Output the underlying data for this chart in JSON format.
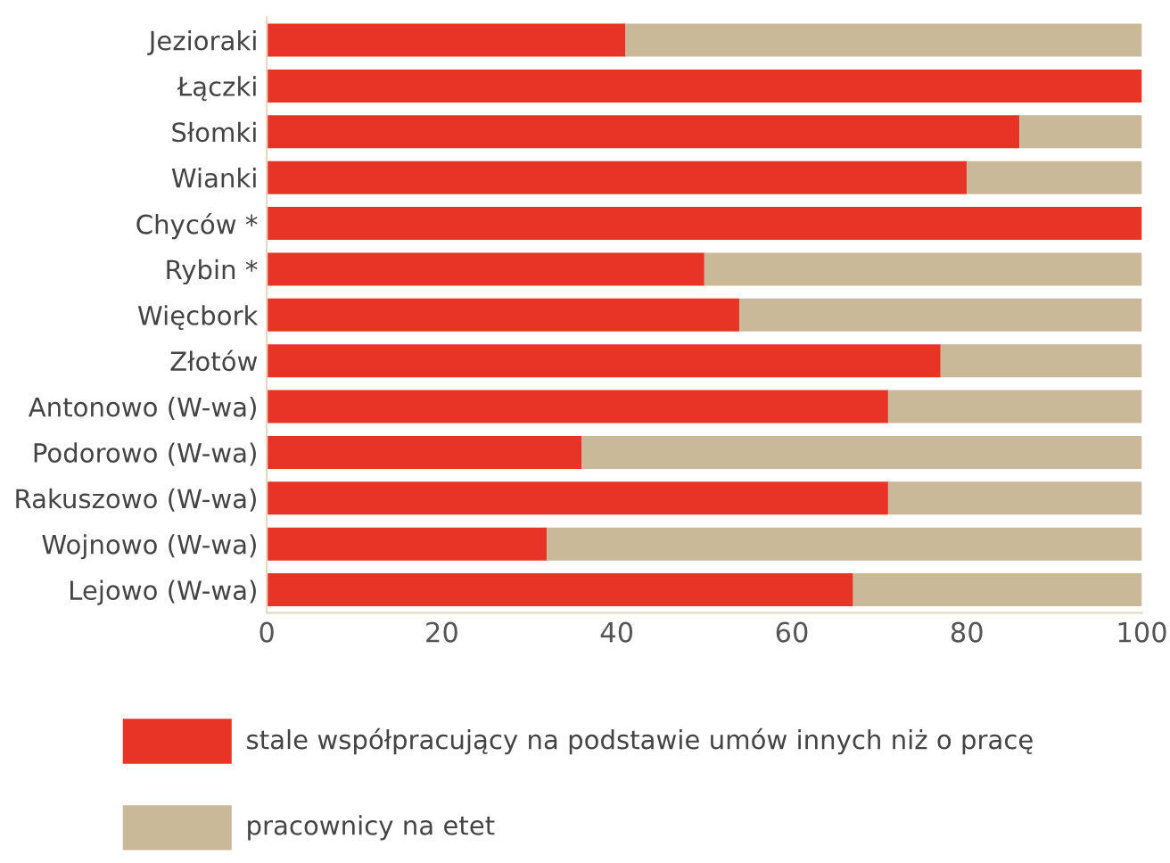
{
  "chart_data": {
    "type": "bar",
    "orientation": "horizontal",
    "stacked": true,
    "categories": [
      "Jezioraki",
      "Łączki",
      "Słomki",
      "Wianki",
      "Chyców *",
      "Rybin *",
      "Więcbork",
      "Złotów",
      "Antonowo (W-wa)",
      "Podorowo (W-wa)",
      "Rakuszowo (W-wa)",
      "Wojnowo (W-wa)",
      "Lejowo (W-wa)"
    ],
    "series": [
      {
        "name": "stale współpracujący na podstawie umów innych niż o pracę",
        "color": "#e73426",
        "values": [
          41,
          100,
          86,
          80,
          100,
          50,
          54,
          77,
          71,
          36,
          71,
          32,
          67
        ]
      },
      {
        "name": "pracownicy na etet",
        "color": "#c9b998",
        "values": [
          59,
          0,
          14,
          20,
          0,
          50,
          46,
          23,
          29,
          64,
          29,
          68,
          33
        ]
      }
    ],
    "xlim": [
      0,
      100
    ],
    "xticks": [
      0,
      20,
      40,
      60,
      80,
      100
    ],
    "grid": false,
    "legend": "bottom"
  }
}
